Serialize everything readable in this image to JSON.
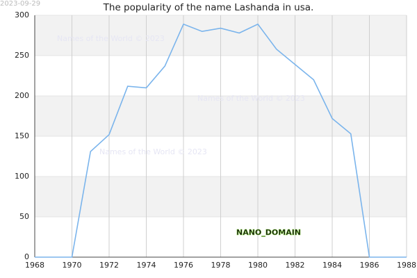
{
  "chart_data": {
    "type": "line",
    "title": "The popularity of the name Lashanda in usa.",
    "date_stamp": "2023-09-29",
    "watermark": "Names of the World © 2023",
    "annotation": "NANO_DOMAIN",
    "x": [
      1968,
      1969,
      1970,
      1971,
      1972,
      1973,
      1974,
      1975,
      1976,
      1977,
      1978,
      1979,
      1980,
      1981,
      1982,
      1983,
      1984,
      1985,
      1986,
      1987,
      1988
    ],
    "series": [
      {
        "name": "Lashanda",
        "color": "#7ab4ec",
        "values": [
          0,
          0,
          0,
          131,
          152,
          212,
          210,
          237,
          289,
          280,
          284,
          278,
          289,
          258,
          239,
          220,
          172,
          153,
          0,
          0,
          0
        ]
      }
    ],
    "xlim": [
      1968,
      1988
    ],
    "xticks": [
      1968,
      1970,
      1972,
      1974,
      1976,
      1978,
      1980,
      1982,
      1984,
      1986,
      1988
    ],
    "ylim": [
      0,
      300
    ],
    "yticks": [
      0,
      50,
      100,
      150,
      200,
      250,
      300
    ],
    "grid": true
  }
}
